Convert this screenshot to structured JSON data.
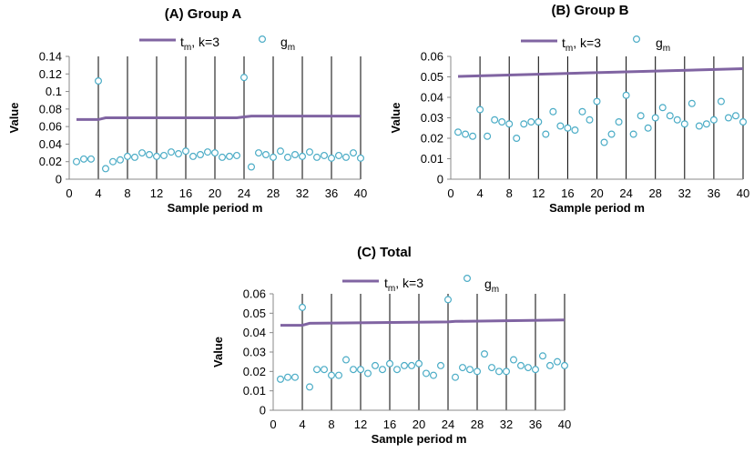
{
  "chart_data": [
    {
      "type": "scatter",
      "title": "(A) Group A",
      "xlabel": "Sample period m",
      "ylabel": "Value",
      "xlim": [
        0,
        40
      ],
      "ylim": [
        0,
        0.14
      ],
      "xticks": [
        0,
        4,
        8,
        12,
        16,
        20,
        24,
        28,
        32,
        36,
        40
      ],
      "yticks": [
        0,
        0.02,
        0.04,
        0.06,
        0.08,
        0.1,
        0.12,
        0.14
      ],
      "ytick_labels": [
        "0",
        "0.02",
        "0.04",
        "0.06",
        "0.08",
        "0.1",
        "0.12",
        "0.14"
      ],
      "grid": "vertical",
      "legend": "top",
      "series": [
        {
          "name": "t_m, k=3",
          "kind": "line",
          "color": "#8064a2",
          "x": [
            1,
            4,
            5,
            23,
            24,
            25,
            40
          ],
          "y": [
            0.068,
            0.068,
            0.07,
            0.07,
            0.071,
            0.072,
            0.072
          ]
        },
        {
          "name": "g_m",
          "kind": "markers",
          "color": "#4bacc6",
          "x": [
            1,
            2,
            3,
            4,
            5,
            6,
            7,
            8,
            9,
            10,
            11,
            12,
            13,
            14,
            15,
            16,
            17,
            18,
            19,
            20,
            21,
            22,
            23,
            24,
            25,
            26,
            27,
            28,
            29,
            30,
            31,
            32,
            33,
            34,
            35,
            36,
            37,
            38,
            39,
            40
          ],
          "y": [
            0.02,
            0.023,
            0.023,
            0.112,
            0.012,
            0.02,
            0.022,
            0.026,
            0.025,
            0.03,
            0.028,
            0.026,
            0.027,
            0.031,
            0.029,
            0.032,
            0.026,
            0.028,
            0.031,
            0.03,
            0.025,
            0.026,
            0.027,
            0.116,
            0.014,
            0.03,
            0.028,
            0.025,
            0.032,
            0.025,
            0.028,
            0.026,
            0.031,
            0.025,
            0.027,
            0.024,
            0.027,
            0.025,
            0.03,
            0.024
          ]
        }
      ]
    },
    {
      "type": "scatter",
      "title": "(B) Group B",
      "xlabel": "Sample period m",
      "ylabel": "Value",
      "xlim": [
        0,
        40
      ],
      "ylim": [
        0,
        0.06
      ],
      "xticks": [
        0,
        4,
        8,
        12,
        16,
        20,
        24,
        28,
        32,
        36,
        40
      ],
      "yticks": [
        0,
        0.01,
        0.02,
        0.03,
        0.04,
        0.05,
        0.06
      ],
      "ytick_labels": [
        "0",
        "0.01",
        "0.02",
        "0.03",
        "0.04",
        "0.05",
        "0.06"
      ],
      "grid": "vertical",
      "legend": "top",
      "series": [
        {
          "name": "t_m, k=3",
          "kind": "line",
          "color": "#8064a2",
          "x": [
            1,
            40
          ],
          "y": [
            0.0502,
            0.054
          ]
        },
        {
          "name": "g_m",
          "kind": "markers",
          "color": "#4bacc6",
          "x": [
            1,
            2,
            3,
            4,
            5,
            6,
            7,
            8,
            9,
            10,
            11,
            12,
            13,
            14,
            15,
            16,
            17,
            18,
            19,
            20,
            21,
            22,
            23,
            24,
            25,
            26,
            27,
            28,
            29,
            30,
            31,
            32,
            33,
            34,
            35,
            36,
            37,
            38,
            39,
            40
          ],
          "y": [
            0.023,
            0.022,
            0.021,
            0.034,
            0.021,
            0.029,
            0.028,
            0.027,
            0.02,
            0.027,
            0.028,
            0.028,
            0.022,
            0.033,
            0.026,
            0.025,
            0.024,
            0.033,
            0.029,
            0.038,
            0.018,
            0.022,
            0.028,
            0.041,
            0.022,
            0.031,
            0.025,
            0.03,
            0.035,
            0.031,
            0.029,
            0.027,
            0.037,
            0.026,
            0.027,
            0.029,
            0.038,
            0.03,
            0.031,
            0.028
          ]
        }
      ]
    },
    {
      "type": "scatter",
      "title": "(C) Total",
      "xlabel": "Sample period m",
      "ylabel": "Value",
      "xlim": [
        0,
        40
      ],
      "ylim": [
        0,
        0.06
      ],
      "xticks": [
        0,
        4,
        8,
        12,
        16,
        20,
        24,
        28,
        32,
        36,
        40
      ],
      "yticks": [
        0,
        0.01,
        0.02,
        0.03,
        0.04,
        0.05,
        0.06
      ],
      "ytick_labels": [
        "0",
        "0.01",
        "0.02",
        "0.03",
        "0.04",
        "0.05",
        "0.06"
      ],
      "grid": "vertical",
      "legend": "top",
      "series": [
        {
          "name": "t_m, k=3",
          "kind": "line",
          "color": "#8064a2",
          "x": [
            1,
            4,
            5,
            24,
            25,
            40
          ],
          "y": [
            0.0438,
            0.0438,
            0.0448,
            0.0455,
            0.0458,
            0.0465
          ]
        },
        {
          "name": "g_m",
          "kind": "markers",
          "color": "#4bacc6",
          "x": [
            1,
            2,
            3,
            4,
            5,
            6,
            7,
            8,
            9,
            10,
            11,
            12,
            13,
            14,
            15,
            16,
            17,
            18,
            19,
            20,
            21,
            22,
            23,
            24,
            25,
            26,
            27,
            28,
            29,
            30,
            31,
            32,
            33,
            34,
            35,
            36,
            37,
            38,
            39,
            40
          ],
          "y": [
            0.016,
            0.017,
            0.017,
            0.053,
            0.012,
            0.021,
            0.021,
            0.018,
            0.018,
            0.026,
            0.021,
            0.021,
            0.019,
            0.023,
            0.021,
            0.024,
            0.021,
            0.023,
            0.023,
            0.024,
            0.019,
            0.018,
            0.023,
            0.057,
            0.017,
            0.022,
            0.021,
            0.02,
            0.029,
            0.022,
            0.02,
            0.02,
            0.026,
            0.023,
            0.022,
            0.021,
            0.028,
            0.023,
            0.025,
            0.023
          ]
        }
      ]
    }
  ]
}
